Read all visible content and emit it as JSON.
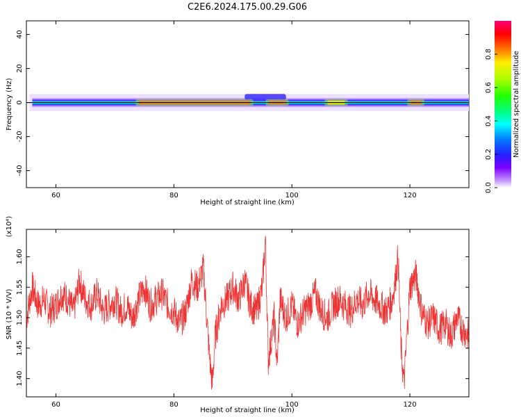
{
  "chart_data": [
    {
      "type": "heatmap",
      "title": "C2E6.2024.175.00.29.G06",
      "xlabel": "Height of straight line (km)",
      "ylabel": "Frequency (Hz)",
      "xlim": [
        55,
        130
      ],
      "ylim": [
        -50,
        48
      ],
      "x_ticks": [
        "60",
        "80",
        "100",
        "120"
      ],
      "y_ticks": [
        "40",
        "20",
        "0",
        "-20",
        "-40"
      ],
      "colorbar": {
        "label": "Normalized spectral amplitude",
        "ticks": [
          "0.0",
          "0.2",
          "0.4",
          "0.6",
          "0.8"
        ],
        "range": [
          0,
          1
        ]
      },
      "band": {
        "center_hz": 0,
        "strong_segments": [
          {
            "x_from": 74,
            "x_to": 93,
            "amplitude": 0.9
          },
          {
            "x_from": 96,
            "x_to": 99,
            "amplitude": 0.9
          },
          {
            "x_from": 106,
            "x_to": 109,
            "amplitude": 0.75
          },
          {
            "x_from": 120,
            "x_to": 122,
            "amplitude": 0.85
          }
        ],
        "upward_bump": {
          "x_from": 92,
          "x_to": 99,
          "top_hz": 5
        }
      }
    },
    {
      "type": "line",
      "xlabel": "Height of straight line (km)",
      "ylabel": "SNR (10 * V/V)",
      "y_multiplier": "(x10⁴)",
      "xlim": [
        55,
        130
      ],
      "ylim": [
        1.37,
        1.645
      ],
      "x_ticks": [
        "60",
        "80",
        "100",
        "120"
      ],
      "y_ticks": [
        "1.60",
        "1.55",
        "1.50",
        "1.45",
        "1.40"
      ],
      "series_color": "#ee3333",
      "x": [
        55,
        56,
        57,
        58,
        59,
        60,
        61,
        62,
        63,
        64,
        65,
        66,
        67,
        68,
        69,
        70,
        71,
        72,
        73,
        74,
        75,
        76,
        77,
        78,
        79,
        80,
        81,
        82,
        83,
        84,
        85,
        86,
        86.5,
        87,
        88,
        89,
        90,
        91,
        92,
        93,
        94,
        95,
        95.5,
        96,
        97,
        97.5,
        98,
        99,
        100,
        101,
        102,
        103,
        104,
        105,
        106,
        107,
        108,
        109,
        110,
        111,
        112,
        113,
        114,
        115,
        116,
        117,
        117.5,
        118,
        118.5,
        119,
        120,
        121,
        122,
        123,
        124,
        125,
        126,
        127,
        128,
        129,
        130
      ],
      "y": [
        1.5,
        1.55,
        1.52,
        1.53,
        1.51,
        1.52,
        1.54,
        1.53,
        1.51,
        1.56,
        1.53,
        1.52,
        1.54,
        1.51,
        1.52,
        1.53,
        1.51,
        1.52,
        1.5,
        1.53,
        1.55,
        1.52,
        1.53,
        1.54,
        1.52,
        1.51,
        1.49,
        1.51,
        1.56,
        1.55,
        1.58,
        1.44,
        1.39,
        1.47,
        1.52,
        1.53,
        1.55,
        1.53,
        1.56,
        1.52,
        1.51,
        1.55,
        1.63,
        1.43,
        1.5,
        1.42,
        1.53,
        1.5,
        1.52,
        1.49,
        1.51,
        1.52,
        1.54,
        1.51,
        1.5,
        1.52,
        1.53,
        1.52,
        1.51,
        1.53,
        1.52,
        1.54,
        1.53,
        1.52,
        1.51,
        1.53,
        1.56,
        1.6,
        1.45,
        1.39,
        1.55,
        1.57,
        1.51,
        1.49,
        1.5,
        1.48,
        1.49,
        1.47,
        1.5,
        1.48,
        1.47
      ]
    }
  ]
}
